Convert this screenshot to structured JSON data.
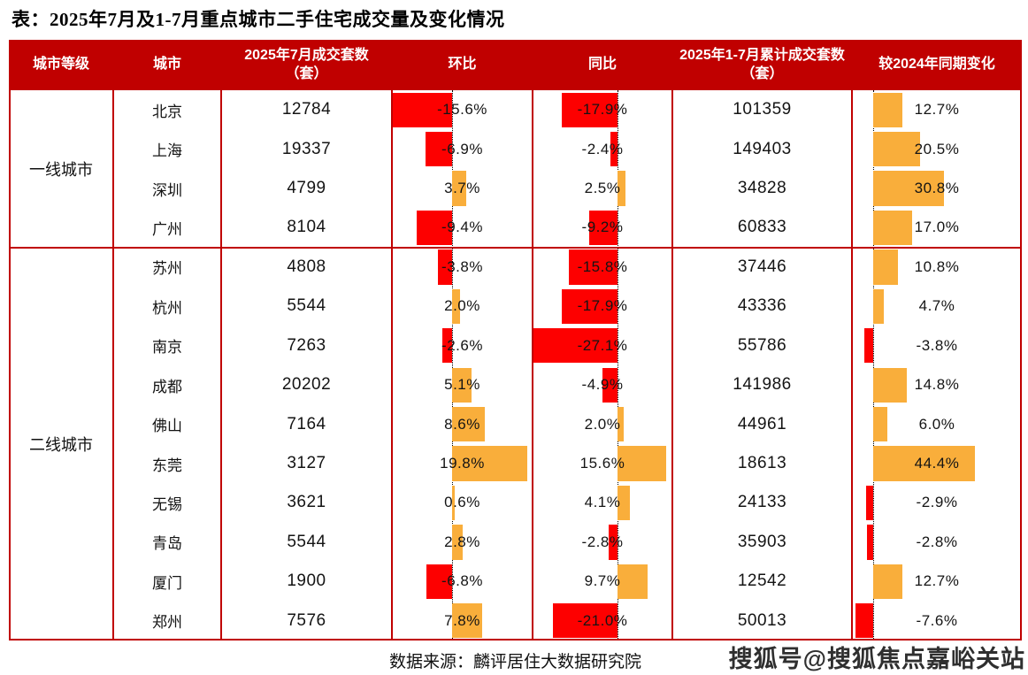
{
  "title": "表：2025年7月及1-7月重点城市二手住宅成交量及变化情况",
  "source_note": "数据来源：麟评居住大数据研究院",
  "watermark": "搜狐号@搜狐焦点嘉峪关站",
  "colors": {
    "header_bg": "#c00000",
    "border": "#c00000",
    "negative_bar": "#fd0000",
    "positive_bar": "#f9ae3b",
    "header_text": "#ffffff",
    "body_text": "#141414"
  },
  "chart_data": {
    "type": "table",
    "title": "表：2025年7月及1-7月重点城市二手住宅成交量及变化情况",
    "column_headers": [
      "城市等级",
      "城市",
      "2025年7月成交套数（套）",
      "环比",
      "同比",
      "2025年1-7月累计成交套数（套）",
      "较2024年同期变化"
    ],
    "bar_columns": [
      "环比",
      "同比",
      "较2024年同期变化"
    ],
    "legend_note": "negative values red bars left of dotted baseline, positive values orange bars right of baseline",
    "source": "数据来源：麟评居住大数据研究院",
    "groups": [
      {
        "tier": "一线城市",
        "rows": [
          {
            "city": "北京",
            "jul_units": "12784",
            "mom": {
              "label": "-15.6%",
              "value": -15.6
            },
            "yoy": {
              "label": "-17.9%",
              "value": -17.9
            },
            "cum_units": "101359",
            "vs2024": {
              "label": "12.7%",
              "value": 12.7
            }
          },
          {
            "city": "上海",
            "jul_units": "19337",
            "mom": {
              "label": "-6.9%",
              "value": -6.9
            },
            "yoy": {
              "label": "-2.4%",
              "value": -2.4
            },
            "cum_units": "149403",
            "vs2024": {
              "label": "20.5%",
              "value": 20.5
            }
          },
          {
            "city": "深圳",
            "jul_units": "4799",
            "mom": {
              "label": "3.7%",
              "value": 3.7
            },
            "yoy": {
              "label": "2.5%",
              "value": 2.5
            },
            "cum_units": "34828",
            "vs2024": {
              "label": "30.8%",
              "value": 30.8
            }
          },
          {
            "city": "广州",
            "jul_units": "8104",
            "mom": {
              "label": "-9.4%",
              "value": -9.4
            },
            "yoy": {
              "label": "-9.2%",
              "value": -9.2
            },
            "cum_units": "60833",
            "vs2024": {
              "label": "17.0%",
              "value": 17.0
            }
          }
        ]
      },
      {
        "tier": "二线城市",
        "rows": [
          {
            "city": "苏州",
            "jul_units": "4808",
            "mom": {
              "label": "-3.8%",
              "value": -3.8
            },
            "yoy": {
              "label": "-15.8%",
              "value": -15.8
            },
            "cum_units": "37446",
            "vs2024": {
              "label": "10.8%",
              "value": 10.8
            }
          },
          {
            "city": "杭州",
            "jul_units": "5544",
            "mom": {
              "label": "2.0%",
              "value": 2.0
            },
            "yoy": {
              "label": "-17.9%",
              "value": -17.9
            },
            "cum_units": "43336",
            "vs2024": {
              "label": "4.7%",
              "value": 4.7
            }
          },
          {
            "city": "南京",
            "jul_units": "7263",
            "mom": {
              "label": "-2.6%",
              "value": -2.6
            },
            "yoy": {
              "label": "-27.1%",
              "value": -27.1
            },
            "cum_units": "55786",
            "vs2024": {
              "label": "-3.8%",
              "value": -3.8
            }
          },
          {
            "city": "成都",
            "jul_units": "20202",
            "mom": {
              "label": "5.1%",
              "value": 5.1
            },
            "yoy": {
              "label": "-4.9%",
              "value": -4.9
            },
            "cum_units": "141986",
            "vs2024": {
              "label": "14.8%",
              "value": 14.8
            }
          },
          {
            "city": "佛山",
            "jul_units": "7164",
            "mom": {
              "label": "8.6%",
              "value": 8.6
            },
            "yoy": {
              "label": "2.0%",
              "value": 2.0
            },
            "cum_units": "44961",
            "vs2024": {
              "label": "6.0%",
              "value": 6.0
            }
          },
          {
            "city": "东莞",
            "jul_units": "3127",
            "mom": {
              "label": "19.8%",
              "value": 19.8
            },
            "yoy": {
              "label": "15.6%",
              "value": 15.6
            },
            "cum_units": "18613",
            "vs2024": {
              "label": "44.4%",
              "value": 44.4
            }
          },
          {
            "city": "无锡",
            "jul_units": "3621",
            "mom": {
              "label": "0.6%",
              "value": 0.6
            },
            "yoy": {
              "label": "4.1%",
              "value": 4.1
            },
            "cum_units": "24133",
            "vs2024": {
              "label": "-2.9%",
              "value": -2.9
            }
          },
          {
            "city": "青岛",
            "jul_units": "5544",
            "mom": {
              "label": "2.8%",
              "value": 2.8
            },
            "yoy": {
              "label": "-2.8%",
              "value": -2.8
            },
            "cum_units": "35903",
            "vs2024": {
              "label": "-2.8%",
              "value": -2.8
            }
          },
          {
            "city": "厦门",
            "jul_units": "1900",
            "mom": {
              "label": "-6.8%",
              "value": -6.8
            },
            "yoy": {
              "label": "9.7%",
              "value": 9.7
            },
            "cum_units": "12542",
            "vs2024": {
              "label": "12.7%",
              "value": 12.7
            }
          },
          {
            "city": "郑州",
            "jul_units": "7576",
            "mom": {
              "label": "7.8%",
              "value": 7.8
            },
            "yoy": {
              "label": "-21.0%",
              "value": -21.0
            },
            "cum_units": "50013",
            "vs2024": {
              "label": "-7.6%",
              "value": -7.6
            }
          }
        ]
      }
    ]
  }
}
